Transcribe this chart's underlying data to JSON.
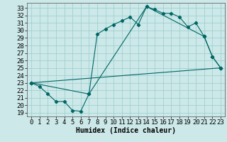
{
  "xlabel": "Humidex (Indice chaleur)",
  "bg_color": "#cce8e8",
  "line_color": "#006666",
  "grid_color": "#99cccc",
  "xlim": [
    -0.5,
    23.5
  ],
  "ylim": [
    18.5,
    33.7
  ],
  "xticks": [
    0,
    1,
    2,
    3,
    4,
    5,
    6,
    7,
    8,
    9,
    10,
    11,
    12,
    13,
    14,
    15,
    16,
    17,
    18,
    19,
    20,
    21,
    22,
    23
  ],
  "yticks": [
    19,
    20,
    21,
    22,
    23,
    24,
    25,
    26,
    27,
    28,
    29,
    30,
    31,
    32,
    33
  ],
  "line1_x": [
    0,
    1,
    2,
    3,
    4,
    5,
    6,
    7,
    8,
    9,
    10,
    11,
    12,
    13,
    14,
    15,
    16,
    17,
    18,
    19,
    20,
    21,
    22,
    23
  ],
  "line1_y": [
    23,
    22.5,
    21.5,
    20.5,
    20.5,
    19.3,
    19.2,
    21.5,
    29.5,
    30.2,
    30.8,
    31.3,
    31.8,
    30.8,
    33.2,
    32.8,
    32.3,
    32.3,
    31.8,
    30.5,
    31.0,
    29.2,
    26.5,
    25.0
  ],
  "line2_x": [
    0,
    7,
    14,
    21,
    22,
    23
  ],
  "line2_y": [
    23,
    21.5,
    33.2,
    29.2,
    26.5,
    25.0
  ],
  "line3_x": [
    0,
    23
  ],
  "line3_y": [
    23,
    25.0
  ],
  "font_size": 6.5,
  "xlabel_fontsize": 7
}
